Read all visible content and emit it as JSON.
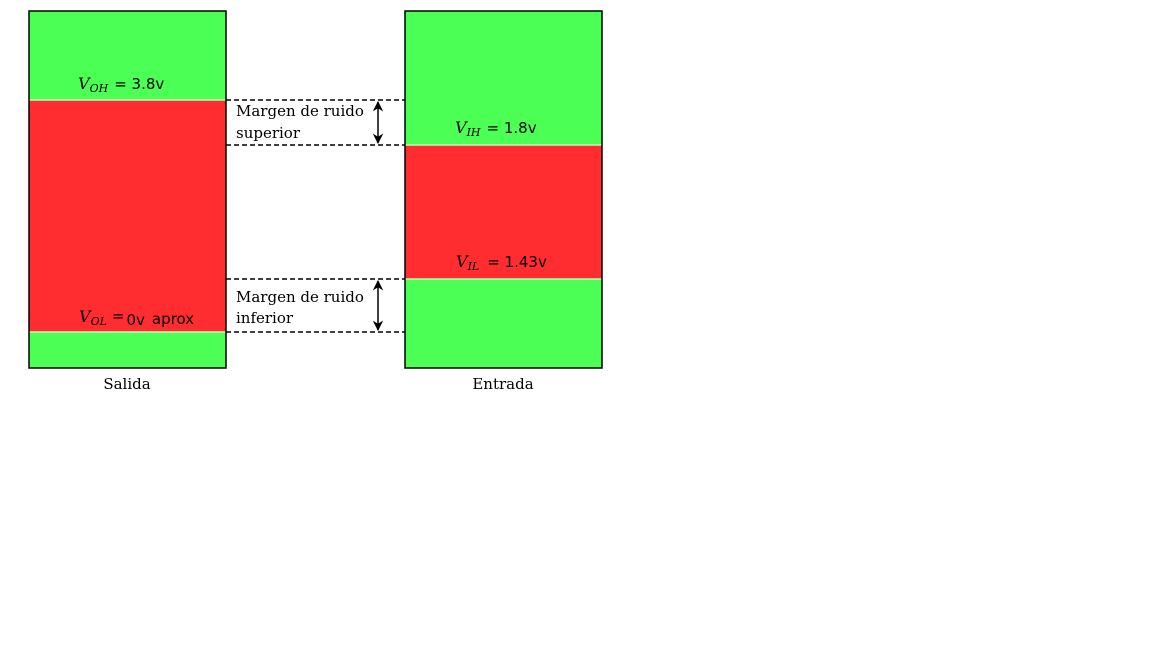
{
  "colors": {
    "valid": "#4cff55",
    "forbidden": "#ff2d2f",
    "outline": "#000000"
  },
  "output": {
    "caption": "Salida",
    "voh": {
      "symbol": "V",
      "sub": "OH",
      "value": "= 3.8v"
    },
    "vol": {
      "symbol": "V",
      "sub": "OL",
      "value": "=",
      "value2": "0v",
      "value3": "aprox"
    }
  },
  "input": {
    "caption": "Entrada",
    "vih": {
      "symbol": "V",
      "sub": "IH",
      "value": "= 1.8v"
    },
    "vil": {
      "symbol": "V",
      "sub": "IL",
      "value": "= 1.43v"
    }
  },
  "margins": {
    "upper": {
      "line1": "Margen de ruido",
      "line2": "superior"
    },
    "lower": {
      "line1": "Margen de ruido",
      "line2": "inferior"
    }
  }
}
